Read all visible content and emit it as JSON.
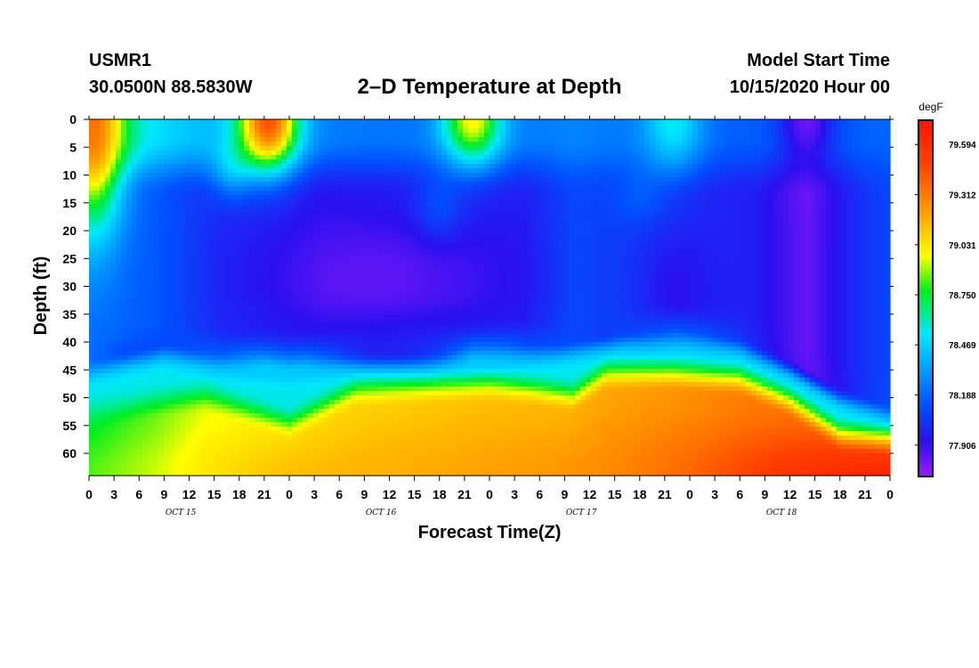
{
  "header": {
    "station": "USMR1",
    "coords": "30.0500N 88.5830W",
    "title": "2–D Temperature at Depth",
    "start_label": "Model Start Time",
    "start_value": "10/15/2020 Hour 00"
  },
  "chart_data": {
    "type": "heatmap",
    "title": "2–D Temperature at Depth",
    "xlabel": "Forecast Time(Z)",
    "ylabel": "Depth (ft)",
    "colorbar_label": "degF",
    "colorbar_ticks": [
      "79.594",
      "79.312",
      "79.031",
      "78.750",
      "78.469",
      "78.188",
      "77.906"
    ],
    "colorbar_tick_values": [
      79.594,
      79.312,
      79.031,
      78.75,
      78.469,
      78.188,
      77.906
    ],
    "color_range": [
      77.73,
      79.73
    ],
    "colormap": [
      "#9b1aff",
      "#2a10ee",
      "#0050ff",
      "#00e8ff",
      "#00ee20",
      "#ffff00",
      "#ff9800",
      "#ff4000",
      "#ff1500"
    ],
    "x_hours_range": [
      0,
      96
    ],
    "x_tick_labels": [
      "0",
      "3",
      "6",
      "9",
      "12",
      "15",
      "18",
      "21",
      "0",
      "3",
      "6",
      "9",
      "12",
      "15",
      "18",
      "21",
      "0",
      "3",
      "6",
      "9",
      "12",
      "15",
      "18",
      "21",
      "0",
      "3",
      "6",
      "9",
      "12",
      "15",
      "18",
      "21",
      "0"
    ],
    "day_labels": [
      {
        "text": "OCT 15",
        "hour": 11
      },
      {
        "text": "OCT 16",
        "hour": 35
      },
      {
        "text": "OCT 17",
        "hour": 59
      },
      {
        "text": "OCT 18",
        "hour": 83
      }
    ],
    "ylim": [
      64,
      0
    ],
    "y_ticks": [
      0,
      5,
      10,
      15,
      20,
      25,
      30,
      35,
      40,
      45,
      50,
      55,
      60
    ],
    "y_tick_labels": [
      "0",
      "5",
      "10",
      "15",
      "20",
      "25",
      "30",
      "35",
      "40",
      "45",
      "50",
      "55",
      "60"
    ],
    "grid": false,
    "features": {
      "thermocline_depth": [
        [
          0,
          46
        ],
        [
          9,
          43
        ],
        [
          16,
          45
        ],
        [
          24,
          46
        ],
        [
          30,
          45
        ],
        [
          40,
          45
        ],
        [
          48,
          44
        ],
        [
          56,
          43
        ],
        [
          64,
          41
        ],
        [
          72,
          41
        ],
        [
          78,
          42
        ],
        [
          84,
          46
        ],
        [
          90,
          51
        ],
        [
          96,
          54
        ]
      ],
      "bottom_warm_top": [
        [
          0,
          53
        ],
        [
          8,
          51
        ],
        [
          14,
          50
        ],
        [
          24,
          55
        ],
        [
          32,
          49
        ],
        [
          48,
          48
        ],
        [
          54,
          49
        ],
        [
          58,
          50
        ],
        [
          62,
          46
        ],
        [
          70,
          46
        ],
        [
          78,
          47
        ],
        [
          84,
          51
        ],
        [
          90,
          57
        ],
        [
          96,
          58
        ]
      ],
      "surface_warm_events": [
        {
          "hour": 0.5,
          "depth": 12,
          "temp": 79.35
        },
        {
          "hour": 21.5,
          "depth": 3,
          "temp": 79.45
        },
        {
          "hour": 46,
          "depth": 2,
          "temp": 79.0
        },
        {
          "hour": 70,
          "depth": 3,
          "temp": 78.55
        }
      ],
      "cold_core_min": {
        "hour": 86,
        "depth": 2,
        "temp": 77.78
      }
    }
  }
}
